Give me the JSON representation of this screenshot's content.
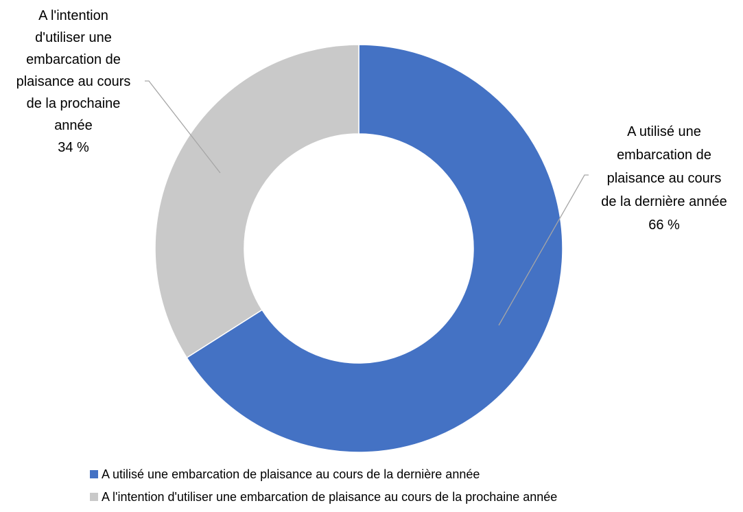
{
  "chart_data": {
    "type": "pie",
    "donut": true,
    "start_angle_deg": 0,
    "direction": "clockwise",
    "slices": [
      {
        "label": "A utilisé une embarcation de plaisance au cours de la dernière année",
        "value": 66,
        "value_label": "66 %",
        "data_label_lines": [
          "A utilisé une",
          "embarcation de",
          "plaisance au cours",
          "de la dernière année",
          "66 %"
        ],
        "color": "#4472C4"
      },
      {
        "label": "A l'intention d'utiliser une embarcation de plaisance au cours de la prochaine année",
        "value": 34,
        "value_label": "34 %",
        "data_label_lines": [
          "A l'intention",
          "d'utiliser une",
          "embarcation de",
          "plaisance au cours",
          "de la prochaine",
          "année",
          "34 %"
        ],
        "color": "#C9C9C9"
      }
    ],
    "legend": {
      "position": "bottom",
      "items": [
        "A utilisé une embarcation de plaisance au cours de la dernière année",
        "A l'intention d'utiliser une embarcation de plaisance au cours de la prochaine année"
      ]
    }
  }
}
